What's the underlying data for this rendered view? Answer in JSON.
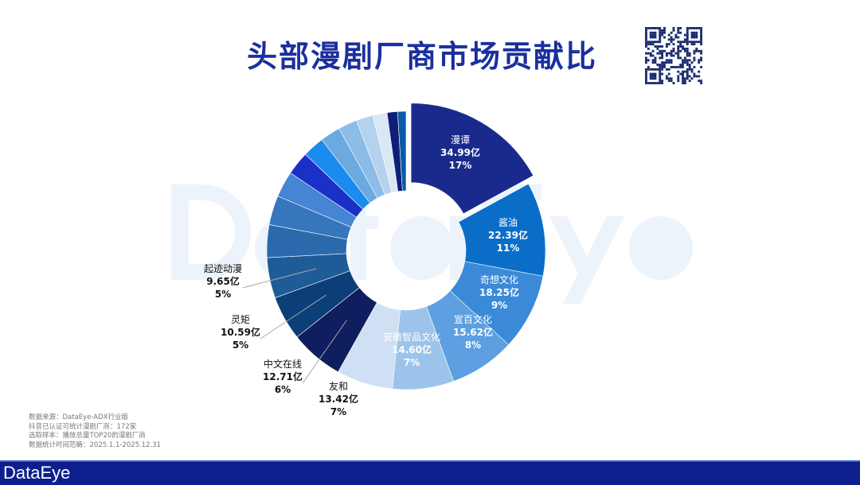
{
  "title": "头部漫剧厂商市场贡献比",
  "watermark": "DataEye",
  "logo": "DataEye",
  "notes": [
    "数据来源：DataEye-ADX行业版",
    "抖音已认证可统计漫剧厂商：172家",
    "选取样本：播放总量TOP20的漫剧厂商",
    "数据统计时间范畴：2025.1.1-2025.12.31"
  ],
  "chart_data": {
    "type": "pie",
    "donut": true,
    "unit": "亿",
    "slices": [
      {
        "name": "漫谭",
        "value": 34.99,
        "pct": "17%",
        "color": "#1a2a8c",
        "exploded": true
      },
      {
        "name": "酱油",
        "value": 22.39,
        "pct": "11%",
        "color": "#0a6ec8"
      },
      {
        "name": "奇想文化",
        "value": 18.25,
        "pct": "9%",
        "color": "#3a8ad8"
      },
      {
        "name": "宣百文化",
        "value": 15.62,
        "pct": "8%",
        "color": "#5d9fe0"
      },
      {
        "name": "安徽智品文化",
        "value": 14.6,
        "pct": "7%",
        "color": "#9cc4ea"
      },
      {
        "name": "友和",
        "value": 13.42,
        "pct": "7%",
        "color": "#cfe0f4"
      },
      {
        "name": "中文在线",
        "value": 12.71,
        "pct": "6%",
        "color": "#0f1e5e"
      },
      {
        "name": "灵矩",
        "value": 10.59,
        "pct": "5%",
        "color": "#0c3e78"
      },
      {
        "name": "起迹动漫",
        "value": 9.65,
        "pct": "5%",
        "color": "#1e5c98"
      },
      {
        "value": 7.8,
        "color": "#2a6aac"
      },
      {
        "value": 7.0,
        "color": "#3576bc"
      },
      {
        "value": 6.2,
        "color": "#4684d4"
      },
      {
        "value": 5.6,
        "color": "#1a30c8"
      },
      {
        "value": 5.2,
        "color": "#1a8cf0"
      },
      {
        "value": 4.8,
        "color": "#6aaae0"
      },
      {
        "value": 4.5,
        "color": "#8cbce8"
      },
      {
        "value": 4.0,
        "color": "#b4d2ee"
      },
      {
        "value": 3.4,
        "color": "#dae7f5"
      },
      {
        "value": 2.5,
        "color": "#0f1f78"
      },
      {
        "value": 2.0,
        "color": "#0a5aa8"
      }
    ]
  }
}
